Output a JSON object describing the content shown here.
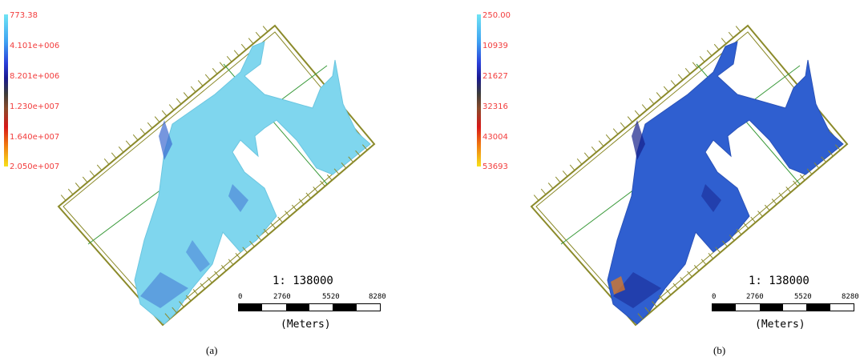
{
  "panels": {
    "a": {
      "caption": "(a)",
      "legend": {
        "labels": [
          "773.38",
          "4.101e+006",
          "8.201e+006",
          "1.230e+007",
          "1.640e+007",
          "2.050e+007"
        ]
      },
      "scale": {
        "ratio": "1: 138000",
        "ticks": [
          "0",
          "2760",
          "5520",
          "8280"
        ],
        "units": "(Meters)"
      },
      "fill_color": "#7fd6ee"
    },
    "b": {
      "caption": "(b)",
      "legend": {
        "labels": [
          "250.00",
          "10939",
          "21627",
          "32316",
          "43004",
          "53693"
        ]
      },
      "scale": {
        "ratio": "1: 138000",
        "ticks": [
          "0",
          "2760",
          "5520",
          "8280"
        ],
        "units": "(Meters)"
      },
      "fill_color": "#2f5fd0"
    }
  },
  "colors": {
    "frame": "#8b8a2a",
    "grid_line": "#3a9a3a",
    "legend_text": "#f23c3c"
  }
}
